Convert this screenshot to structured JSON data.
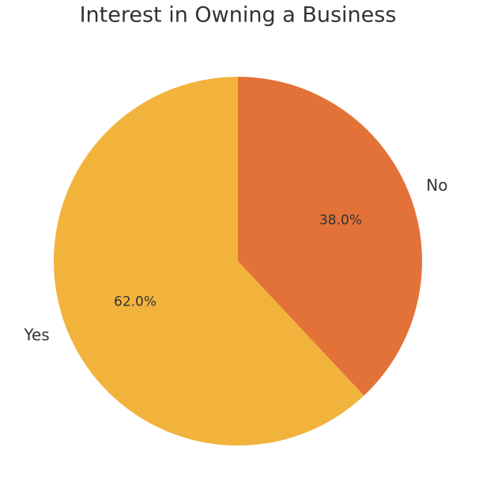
{
  "chart_data": {
    "type": "pie",
    "title": "Interest in Owning a Business",
    "categories": [
      "Yes",
      "No"
    ],
    "values": [
      62,
      38
    ],
    "value_labels": [
      "62.0%",
      "38.0%"
    ],
    "colors": [
      "#f2b33d",
      "#e37238"
    ]
  }
}
